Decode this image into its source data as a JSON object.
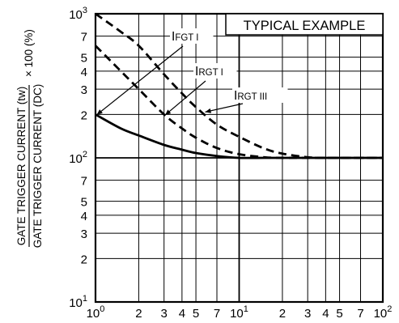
{
  "chart_data": {
    "type": "line",
    "title": "TYPICAL EXAMPLE",
    "xlabel": "",
    "ylabel": {
      "numerator": "GATE TRIGGER CURRENT (tw)",
      "denominator": "GATE TRIGGER CURRENT (DC)",
      "suffix": "× 100 (%)"
    },
    "x_scale": "log",
    "y_scale": "log",
    "xlim": [
      1,
      100
    ],
    "ylim": [
      10,
      1000
    ],
    "grid": true,
    "x_ticks": [
      {
        "value": 1,
        "base": "10",
        "exp": "0"
      },
      {
        "value": 2,
        "base": "2",
        "exp": ""
      },
      {
        "value": 3,
        "base": "3",
        "exp": ""
      },
      {
        "value": 4,
        "base": "4",
        "exp": ""
      },
      {
        "value": 5,
        "base": "5",
        "exp": ""
      },
      {
        "value": 7,
        "base": "7",
        "exp": ""
      },
      {
        "value": 10,
        "base": "10",
        "exp": "1"
      },
      {
        "value": 20,
        "base": "2",
        "exp": ""
      },
      {
        "value": 30,
        "base": "3",
        "exp": ""
      },
      {
        "value": 40,
        "base": "4",
        "exp": ""
      },
      {
        "value": 50,
        "base": "5",
        "exp": ""
      },
      {
        "value": 70,
        "base": "7",
        "exp": ""
      },
      {
        "value": 100,
        "base": "10",
        "exp": "2"
      }
    ],
    "y_ticks": [
      {
        "value": 10,
        "base": "10",
        "exp": "1"
      },
      {
        "value": 20,
        "base": "2",
        "exp": ""
      },
      {
        "value": 30,
        "base": "3",
        "exp": ""
      },
      {
        "value": 40,
        "base": "4",
        "exp": ""
      },
      {
        "value": 50,
        "base": "5",
        "exp": ""
      },
      {
        "value": 70,
        "base": "7",
        "exp": ""
      },
      {
        "value": 100,
        "base": "10",
        "exp": "2"
      },
      {
        "value": 200,
        "base": "2",
        "exp": ""
      },
      {
        "value": 300,
        "base": "3",
        "exp": ""
      },
      {
        "value": 400,
        "base": "4",
        "exp": ""
      },
      {
        "value": 500,
        "base": "5",
        "exp": ""
      },
      {
        "value": 700,
        "base": "7",
        "exp": ""
      },
      {
        "value": 1000,
        "base": "10",
        "exp": "3"
      }
    ],
    "series": [
      {
        "name": "IFGT I",
        "label_main": "I",
        "label_sub": "FGT I",
        "style": "solid",
        "x": [
          1,
          1.5,
          2,
          3,
          4,
          5,
          7,
          10,
          15,
          20,
          30,
          50,
          100
        ],
        "y": [
          200,
          160,
          143,
          123,
          114,
          108,
          103,
          100,
          100,
          100,
          100,
          100,
          100
        ]
      },
      {
        "name": "IRGT I",
        "label_main": "I",
        "label_sub": "RGT I",
        "style": "dash",
        "x": [
          1,
          1.5,
          2,
          3,
          4,
          5,
          7,
          10,
          15,
          20,
          30,
          50,
          100
        ],
        "y": [
          600,
          400,
          300,
          200,
          160,
          138,
          117,
          106,
          101,
          100,
          100,
          100,
          100
        ]
      },
      {
        "name": "IRGT III",
        "label_main": "I",
        "label_sub": "RGT III",
        "style": "dash",
        "x": [
          1,
          1.5,
          2,
          3,
          4,
          5,
          7,
          10,
          15,
          20,
          30,
          40,
          50,
          100
        ],
        "y": [
          1000,
          750,
          600,
          380,
          280,
          225,
          170,
          140,
          116,
          107,
          101,
          100,
          100,
          100
        ]
      }
    ]
  }
}
